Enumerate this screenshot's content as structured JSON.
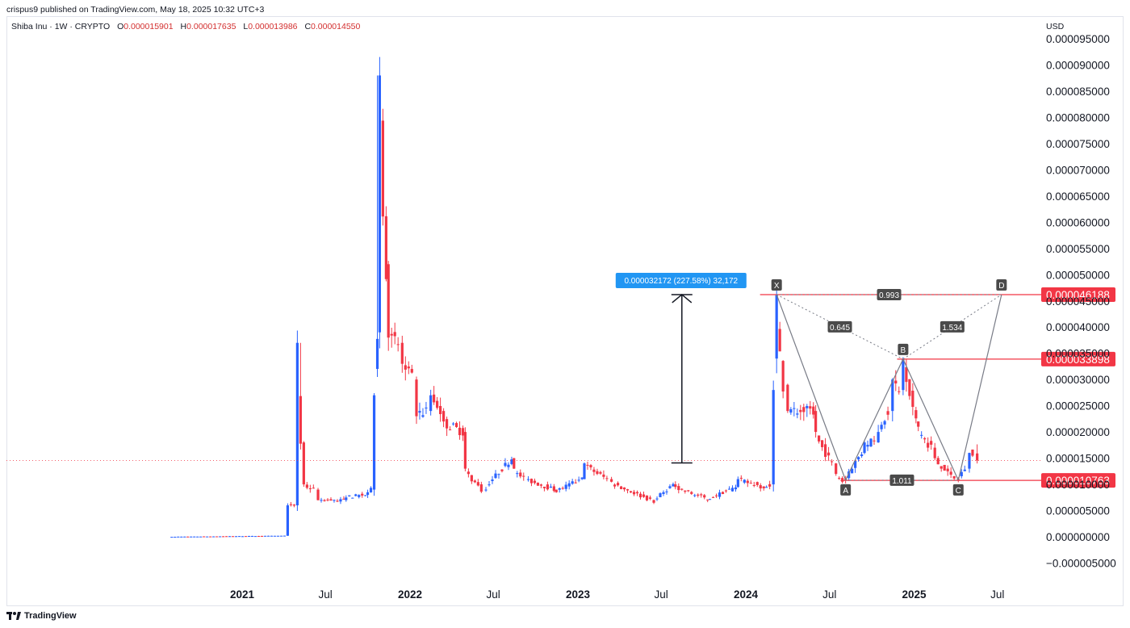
{
  "header": {
    "publisher": "crispus9 published on TradingView.com, May 18, 2025 10:32 UTC+3",
    "symbol": "Shiba Inu · 1W · CRYPTO",
    "ohlc": {
      "o_label": "O",
      "o": "0.000015901",
      "h_label": "H",
      "h": "0.000017635",
      "l_label": "L",
      "l": "0.000013986",
      "c_label": "C",
      "c": "0.000014550"
    },
    "currency": "USD"
  },
  "footer": {
    "brand": "TradingView"
  },
  "colors": {
    "up": "#2962ff",
    "down": "#f23645",
    "price_tag": "#f23645",
    "measure_tag": "#2196f3",
    "pattern_label": "#4a4a4a"
  },
  "chart_data": {
    "type": "candlestick",
    "y_axis": {
      "min": -5e-06,
      "max": 9.5e-05,
      "tick_labels": [
        "0.000095000",
        "0.000090000",
        "0.000085000",
        "0.000080000",
        "0.000075000",
        "0.000070000",
        "0.000065000",
        "0.000060000",
        "0.000055000",
        "0.000050000",
        "0.000045000",
        "0.000040000",
        "0.000035000",
        "0.000030000",
        "0.000025000",
        "0.000020000",
        "0.000015000",
        "0.000010000",
        "0.000005000",
        "0.000000000",
        "−0.000005000"
      ],
      "tick_values": [
        9.5e-05,
        9e-05,
        8.5e-05,
        8e-05,
        7.5e-05,
        7e-05,
        6.5e-05,
        6e-05,
        5.5e-05,
        5e-05,
        4.5e-05,
        4e-05,
        3.5e-05,
        3e-05,
        2.5e-05,
        2e-05,
        1.5e-05,
        1e-05,
        5e-06,
        0,
        -5e-06
      ]
    },
    "x_axis": {
      "labels": [
        {
          "text": "2021",
          "date": "2021-01-01",
          "bold": true
        },
        {
          "text": "Jul",
          "date": "2021-07-01",
          "bold": false
        },
        {
          "text": "2022",
          "date": "2022-01-01",
          "bold": true
        },
        {
          "text": "Jul",
          "date": "2022-07-01",
          "bold": false
        },
        {
          "text": "2023",
          "date": "2023-01-01",
          "bold": true
        },
        {
          "text": "Jul",
          "date": "2023-07-01",
          "bold": false
        },
        {
          "text": "2024",
          "date": "2024-01-01",
          "bold": true
        },
        {
          "text": "Jul",
          "date": "2024-07-01",
          "bold": false
        },
        {
          "text": "2025",
          "date": "2025-01-01",
          "bold": true
        },
        {
          "text": "Jul",
          "date": "2025-07-01",
          "bold": false
        }
      ]
    },
    "price_key_points": [
      [
        "2020-08-01",
        0.0,
        0.0
      ],
      [
        "2021-04-10",
        2e-07,
        6e-06
      ],
      [
        "2021-05-01",
        6e-06,
        3.7e-05
      ],
      [
        "2021-05-15",
        1.8e-05,
        1e-05
      ],
      [
        "2021-06-15",
        9e-06,
        7e-06
      ],
      [
        "2021-08-15",
        7e-06,
        7.5e-06
      ],
      [
        "2021-10-01",
        8e-06,
        8.5e-06
      ],
      [
        "2021-10-15",
        9e-06,
        2.7e-05
      ],
      [
        "2021-10-27",
        3.9e-05,
        8.8e-05
      ],
      [
        "2021-11-15",
        5.2e-05,
        3.8e-05
      ],
      [
        "2021-12-15",
        3.7e-05,
        3.3e-05
      ],
      [
        "2022-01-15",
        3e-05,
        2.3e-05
      ],
      [
        "2022-02-15",
        2.4e-05,
        2.7e-05
      ],
      [
        "2022-03-15",
        2.4e-05,
        2.2e-05
      ],
      [
        "2022-05-01",
        2e-05,
        1.3e-05
      ],
      [
        "2022-06-15",
        9e-06,
        9e-06
      ],
      [
        "2022-08-15",
        1.5e-05,
        1.3e-05
      ],
      [
        "2022-09-15",
        1.1e-05,
        1.1e-05
      ],
      [
        "2022-11-15",
        9e-06,
        8.5e-06
      ],
      [
        "2023-01-15",
        1.1e-05,
        1.4e-05
      ],
      [
        "2023-03-15",
        1.1e-05,
        1.05e-05
      ],
      [
        "2023-06-15",
        7e-06,
        6.5e-06
      ],
      [
        "2023-08-01",
        1e-05,
        9.5e-06
      ],
      [
        "2023-10-15",
        7.2e-06,
        7.2e-06
      ],
      [
        "2023-12-15",
        9.5e-06,
        1.1e-05
      ],
      [
        "2024-02-15",
        9.5e-06,
        9.5e-06
      ],
      [
        "2024-03-01",
        1e-05,
        2.8e-05
      ],
      [
        "2024-03-08",
        3.4e-05,
        4.62e-05
      ],
      [
        "2024-04-01",
        2.9e-05,
        2.4e-05
      ],
      [
        "2024-06-01",
        2.4e-05,
        2e-05
      ],
      [
        "2024-07-15",
        1.4e-05,
        1.2e-05
      ],
      [
        "2024-08-05",
        1.1e-05,
        1.08e-05
      ],
      [
        "2024-09-15",
        1.6e-05,
        1.8e-05
      ],
      [
        "2024-10-15",
        1.8e-05,
        2e-05
      ],
      [
        "2024-11-15",
        2.4e-05,
        3e-05
      ],
      [
        "2024-12-08",
        2.8e-05,
        3.39e-05
      ],
      [
        "2025-01-10",
        2.2e-05,
        2.1e-05
      ],
      [
        "2025-02-15",
        1.7e-05,
        1.5e-05
      ],
      [
        "2025-03-15",
        1.3e-05,
        1.25e-05
      ],
      [
        "2025-04-07",
        1.1e-05,
        1.08e-05
      ],
      [
        "2025-05-01",
        1.3e-05,
        1.6e-05
      ],
      [
        "2025-05-18",
        1.59e-05,
        1.46e-05
      ]
    ],
    "current_price": 1.455e-05,
    "horizontal_levels": [
      {
        "value": 4.6188e-05,
        "label": "0.000046188",
        "from": "2024-02-01"
      },
      {
        "value": 3.3898e-05,
        "label": "0.000033898",
        "from": "2024-11-25"
      },
      {
        "value": 1.0763e-05,
        "label": "0.000010763",
        "from": "2024-07-25"
      }
    ],
    "measure": {
      "from_value": 1.41e-05,
      "to_value": 4.62e-05,
      "date": "2023-08-15",
      "label": "0.000032172 (227.58%) 32,172"
    },
    "xabcd_pattern": {
      "points": [
        {
          "name": "X",
          "date": "2024-03-08",
          "value": 4.62e-05
        },
        {
          "name": "A",
          "date": "2024-08-05",
          "value": 1.08e-05
        },
        {
          "name": "B",
          "date": "2024-12-08",
          "value": 3.39e-05
        },
        {
          "name": "C",
          "date": "2025-04-07",
          "value": 1.08e-05
        },
        {
          "name": "D",
          "date": "2025-07-10",
          "value": 4.62e-05
        }
      ],
      "ratios": [
        {
          "label": "0.645",
          "between": [
            "X",
            "B"
          ]
        },
        {
          "label": "1.534",
          "between": [
            "B",
            "D"
          ]
        },
        {
          "label": "0.993",
          "between": [
            "X",
            "D"
          ]
        },
        {
          "label": "1.011",
          "between": [
            "A",
            "C"
          ]
        }
      ]
    }
  }
}
